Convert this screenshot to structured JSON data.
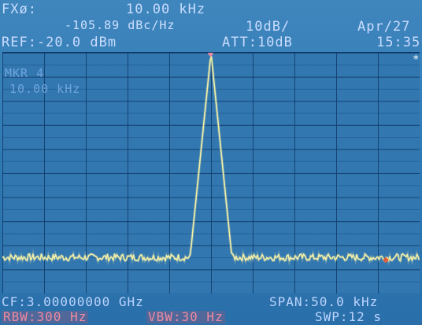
{
  "header": {
    "fx_label": "FXø:",
    "fx_value": "10.00 kHz",
    "noise_value": "-105.89 dBc/Hz",
    "scale": "10dB/",
    "date": "Apr/27",
    "ref_level": "REF:-20.0 dBm",
    "attenuation": "ATT:10dB",
    "time": "15:35",
    "status_star": "*"
  },
  "marker": {
    "label": "MKR 4",
    "frequency": "10.00 kHz"
  },
  "footer": {
    "center_freq": "CF:3.00000000 GHz",
    "span": "SPAN:50.0 kHz",
    "rbw": "RBW:300 Hz",
    "vbw": "VBW:30 Hz",
    "sweep": "SWP:12 s"
  },
  "colors": {
    "trace": "#f2efa6",
    "marker_peak": "#e88aa4",
    "marker_delta": "#e25a3a",
    "grid": "#0a325f",
    "background": "#3277b0"
  },
  "chart_data": {
    "type": "line",
    "title": "",
    "xlabel": "",
    "ylabel": "",
    "x_divisions": 10,
    "y_divisions": 10,
    "grid": true,
    "peak_relative_x": 0.0,
    "noise_floor_relative_db": -85,
    "peak_relative_db": 0,
    "span_khz": 50.0,
    "center_offset_khz": 0
  }
}
